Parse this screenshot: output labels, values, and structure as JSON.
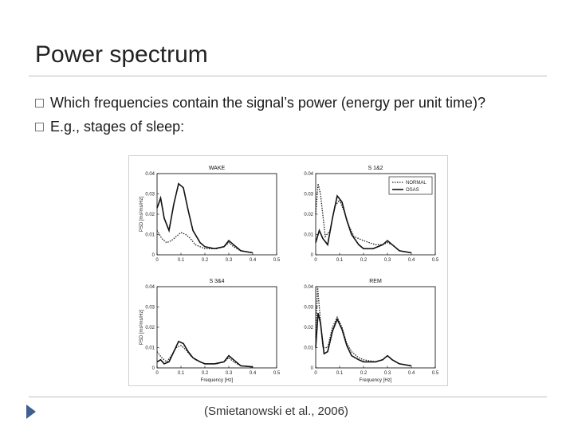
{
  "slide": {
    "title": "Power spectrum",
    "bullets": [
      "Which frequencies contain the signal’s power (energy per unit time)?",
      "E.g., stages of sleep:"
    ],
    "citation": "(Smietanowski  et al., 2006)"
  },
  "chart_data": [
    {
      "type": "line",
      "title": "WAKE",
      "ylabel": "PSD [ms²ms/Hz]",
      "xlabel": "",
      "xlim": [
        0,
        0.5
      ],
      "ylim": [
        0,
        0.04
      ],
      "xticks": [
        "0",
        "0.1",
        "0.2",
        "0.3",
        "0.4",
        "0.5"
      ],
      "yticks": [
        "0",
        "0.01",
        "0.02",
        "0.03",
        "0.04"
      ],
      "series": [
        {
          "name": "",
          "style": "dotted",
          "color": "#222222",
          "x": [
            0,
            0.02,
            0.04,
            0.06,
            0.08,
            0.1,
            0.12,
            0.14,
            0.16,
            0.2,
            0.25,
            0.28,
            0.3,
            0.32,
            0.35,
            0.4
          ],
          "y": [
            0.012,
            0.008,
            0.006,
            0.007,
            0.009,
            0.011,
            0.01,
            0.008,
            0.005,
            0.003,
            0.003,
            0.004,
            0.006,
            0.004,
            0.002,
            0.001
          ]
        },
        {
          "name": "",
          "style": "solid",
          "color": "#111111",
          "x": [
            0,
            0.015,
            0.03,
            0.05,
            0.07,
            0.09,
            0.11,
            0.13,
            0.15,
            0.18,
            0.2,
            0.24,
            0.28,
            0.3,
            0.32,
            0.35,
            0.4
          ],
          "y": [
            0.023,
            0.028,
            0.018,
            0.012,
            0.025,
            0.035,
            0.033,
            0.022,
            0.012,
            0.006,
            0.004,
            0.003,
            0.004,
            0.007,
            0.005,
            0.002,
            0.001
          ]
        }
      ]
    },
    {
      "type": "line",
      "title": "S 1&2",
      "ylabel": "",
      "xlabel": "",
      "xlim": [
        0,
        0.5
      ],
      "ylim": [
        0,
        0.04
      ],
      "xticks": [
        "0",
        "0.1",
        "0.2",
        "0.3",
        "0.4",
        "0.5"
      ],
      "yticks": [
        "0",
        "0.01",
        "0.02",
        "0.03",
        "0.04"
      ],
      "legend": "top-right",
      "series": [
        {
          "name": "NORMAL",
          "style": "dotted",
          "color": "#222222",
          "x": [
            0,
            0.01,
            0.02,
            0.04,
            0.06,
            0.08,
            0.1,
            0.12,
            0.14,
            0.16,
            0.2,
            0.25,
            0.28,
            0.3,
            0.32,
            0.35,
            0.4
          ],
          "y": [
            0.02,
            0.035,
            0.03,
            0.009,
            0.012,
            0.024,
            0.027,
            0.021,
            0.014,
            0.009,
            0.007,
            0.005,
            0.005,
            0.006,
            0.005,
            0.002,
            0.001
          ]
        },
        {
          "name": "OSAS",
          "style": "solid",
          "color": "#111111",
          "x": [
            0,
            0.015,
            0.03,
            0.05,
            0.07,
            0.09,
            0.11,
            0.13,
            0.15,
            0.18,
            0.2,
            0.24,
            0.28,
            0.3,
            0.32,
            0.35,
            0.4
          ],
          "y": [
            0.006,
            0.012,
            0.008,
            0.005,
            0.018,
            0.029,
            0.026,
            0.017,
            0.01,
            0.005,
            0.003,
            0.003,
            0.005,
            0.007,
            0.005,
            0.002,
            0.001
          ]
        }
      ]
    },
    {
      "type": "line",
      "title": "S 3&4",
      "ylabel": "PSD [ms²ms/Hz]",
      "xlabel": "Frequency [Hz]",
      "xlim": [
        0,
        0.5
      ],
      "ylim": [
        0,
        0.04
      ],
      "xticks": [
        "0",
        "0.1",
        "0.2",
        "0.3",
        "0.4",
        "0.5"
      ],
      "yticks": [
        "0",
        "0.01",
        "0.02",
        "0.03",
        "0.04"
      ],
      "series": [
        {
          "name": "",
          "style": "dotted",
          "color": "#222222",
          "x": [
            0,
            0.02,
            0.04,
            0.06,
            0.08,
            0.1,
            0.12,
            0.14,
            0.16,
            0.2,
            0.25,
            0.28,
            0.3,
            0.32,
            0.35,
            0.4
          ],
          "y": [
            0.008,
            0.005,
            0.003,
            0.006,
            0.01,
            0.011,
            0.009,
            0.006,
            0.004,
            0.002,
            0.002,
            0.003,
            0.005,
            0.003,
            0.001,
            0.0005
          ]
        },
        {
          "name": "",
          "style": "solid",
          "color": "#111111",
          "x": [
            0,
            0.015,
            0.03,
            0.05,
            0.07,
            0.09,
            0.11,
            0.13,
            0.15,
            0.18,
            0.2,
            0.24,
            0.28,
            0.3,
            0.32,
            0.35,
            0.4
          ],
          "y": [
            0.003,
            0.004,
            0.002,
            0.003,
            0.008,
            0.013,
            0.012,
            0.008,
            0.005,
            0.003,
            0.002,
            0.002,
            0.003,
            0.006,
            0.004,
            0.001,
            0.0005
          ]
        }
      ]
    },
    {
      "type": "line",
      "title": "REM",
      "ylabel": "",
      "xlabel": "Frequency [Hz]",
      "xlim": [
        0,
        0.5
      ],
      "ylim": [
        0,
        0.04
      ],
      "xticks": [
        "0",
        "0.1",
        "0.2",
        "0.3",
        "0.4",
        "0.5"
      ],
      "yticks": [
        "0",
        "0.01",
        "0.02",
        "0.03",
        "0.04"
      ],
      "series": [
        {
          "name": "",
          "style": "dotted",
          "color": "#222222",
          "x": [
            0,
            0.008,
            0.015,
            0.03,
            0.05,
            0.07,
            0.09,
            0.11,
            0.13,
            0.15,
            0.18,
            0.2,
            0.25,
            0.28,
            0.3,
            0.32,
            0.35,
            0.4
          ],
          "y": [
            0.015,
            0.04,
            0.03,
            0.01,
            0.01,
            0.02,
            0.025,
            0.02,
            0.012,
            0.008,
            0.005,
            0.004,
            0.003,
            0.004,
            0.006,
            0.004,
            0.002,
            0.001
          ]
        },
        {
          "name": "",
          "style": "solid",
          "color": "#111111",
          "x": [
            0,
            0.01,
            0.02,
            0.035,
            0.05,
            0.07,
            0.09,
            0.11,
            0.13,
            0.15,
            0.18,
            0.2,
            0.25,
            0.28,
            0.3,
            0.32,
            0.35,
            0.4
          ],
          "y": [
            0.01,
            0.027,
            0.022,
            0.007,
            0.008,
            0.018,
            0.024,
            0.019,
            0.011,
            0.006,
            0.004,
            0.003,
            0.003,
            0.004,
            0.006,
            0.004,
            0.002,
            0.001
          ]
        }
      ]
    }
  ]
}
